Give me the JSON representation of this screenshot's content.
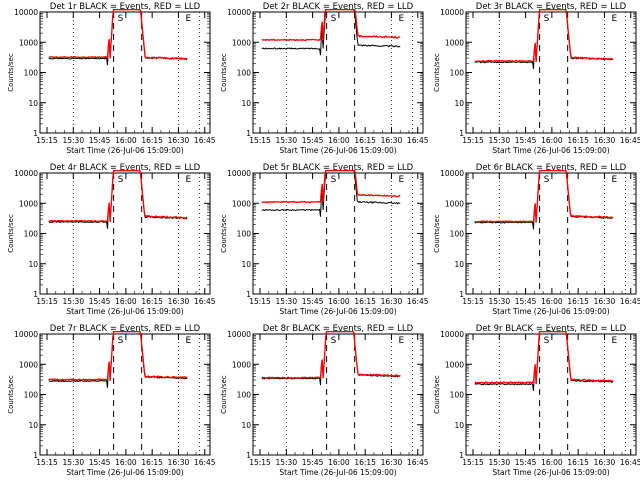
{
  "chart_data": [
    {
      "type": "line",
      "title": "Det 1r BLACK = Events, RED = LLD",
      "xlabel": "Start Time (26-Jul-06 15:09:00)",
      "ylabel": "Counts/sec",
      "xticks": [
        "15:15",
        "15:30",
        "15:45",
        "16:00",
        "16:15",
        "16:30",
        "16:45"
      ],
      "yticks": [
        "1",
        "10",
        "100",
        "1000",
        "10000"
      ],
      "ylim": [
        1,
        10000
      ],
      "yscale": "log",
      "markers": [
        "S",
        "E"
      ],
      "dashed_lines_at": [
        "15:53",
        "16:09"
      ],
      "dotted_lines_at": [
        "15:11",
        "15:30",
        "16:30",
        "16:42"
      ],
      "series": [
        {
          "name": "Events",
          "color": "#000000",
          "base": 290,
          "shift": 310
        },
        {
          "name": "LLD",
          "color": "#ff0000",
          "base": 320,
          "shift": 320
        }
      ]
    },
    {
      "type": "line",
      "title": "Det 2r BLACK = Events, RED = LLD",
      "xlabel": "Start Time (26-Jul-06 15:09:00)",
      "ylabel": "Counts/sec",
      "xticks": [
        "15:15",
        "15:30",
        "15:45",
        "16:00",
        "16:15",
        "16:30",
        "16:45"
      ],
      "yticks": [
        "1",
        "10",
        "100",
        "1000",
        "10000"
      ],
      "ylim": [
        1,
        10000
      ],
      "yscale": "log",
      "markers": [
        "S",
        "E"
      ],
      "dashed_lines_at": [
        "15:53",
        "16:09"
      ],
      "dotted_lines_at": [
        "15:11",
        "15:30",
        "16:30",
        "16:42"
      ],
      "series": [
        {
          "name": "Events",
          "color": "#000000",
          "base": 620,
          "shift": 800
        },
        {
          "name": "LLD",
          "color": "#ff0000",
          "base": 1200,
          "shift": 1600
        }
      ]
    },
    {
      "type": "line",
      "title": "Det 3r BLACK = Events, RED = LLD",
      "xlabel": "Start Time (26-Jul-06 15:09:00)",
      "ylabel": "Counts/sec",
      "xticks": [
        "15:15",
        "15:30",
        "15:45",
        "16:00",
        "16:15",
        "16:30",
        "16:45"
      ],
      "yticks": [
        "1",
        "10",
        "100",
        "1000",
        "10000"
      ],
      "ylim": [
        1,
        10000
      ],
      "yscale": "log",
      "markers": [
        "S",
        "E"
      ],
      "dashed_lines_at": [
        "15:53",
        "16:09"
      ],
      "dotted_lines_at": [
        "15:11",
        "15:30",
        "16:30",
        "16:42"
      ],
      "series": [
        {
          "name": "Events",
          "color": "#000000",
          "base": 220,
          "shift": 300
        },
        {
          "name": "LLD",
          "color": "#ff0000",
          "base": 240,
          "shift": 310
        }
      ]
    },
    {
      "type": "line",
      "title": "Det 4r BLACK = Events, RED = LLD",
      "xlabel": "Start Time (26-Jul-06 15:09:00)",
      "ylabel": "Counts/sec",
      "xticks": [
        "15:15",
        "15:30",
        "15:45",
        "16:00",
        "16:15",
        "16:30",
        "16:45"
      ],
      "yticks": [
        "1",
        "10",
        "100",
        "1000",
        "10000"
      ],
      "ylim": [
        1,
        10000
      ],
      "yscale": "log",
      "markers": [
        "S",
        "E"
      ],
      "dashed_lines_at": [
        "15:53",
        "16:09"
      ],
      "dotted_lines_at": [
        "15:11",
        "15:30",
        "16:30",
        "16:42"
      ],
      "series": [
        {
          "name": "Events",
          "color": "#000000",
          "base": 240,
          "shift": 350
        },
        {
          "name": "LLD",
          "color": "#ff0000",
          "base": 260,
          "shift": 370
        }
      ]
    },
    {
      "type": "line",
      "title": "Det 5r BLACK = Events, RED = LLD",
      "xlabel": "Start Time (26-Jul-06 15:09:00)",
      "ylabel": "Counts/sec",
      "xticks": [
        "15:15",
        "15:30",
        "15:45",
        "16:00",
        "16:15",
        "16:30",
        "16:45"
      ],
      "yticks": [
        "1",
        "10",
        "100",
        "1000",
        "10000"
      ],
      "ylim": [
        1,
        10000
      ],
      "yscale": "log",
      "markers": [
        "S",
        "E"
      ],
      "dashed_lines_at": [
        "15:53",
        "16:09"
      ],
      "dotted_lines_at": [
        "15:11",
        "15:30",
        "16:30",
        "16:42"
      ],
      "series": [
        {
          "name": "Events",
          "color": "#000000",
          "base": 600,
          "shift": 1100
        },
        {
          "name": "LLD",
          "color": "#ff0000",
          "base": 1100,
          "shift": 1900
        }
      ]
    },
    {
      "type": "line",
      "title": "Det 6r BLACK = Events, RED = LLD",
      "xlabel": "Start Time (26-Jul-06 15:09:00)",
      "ylabel": "Counts/sec",
      "xticks": [
        "15:15",
        "15:30",
        "15:45",
        "16:00",
        "16:15",
        "16:30",
        "16:45"
      ],
      "yticks": [
        "1",
        "10",
        "100",
        "1000",
        "10000"
      ],
      "ylim": [
        1,
        10000
      ],
      "yscale": "log",
      "markers": [
        "S",
        "E"
      ],
      "dashed_lines_at": [
        "15:53",
        "16:09"
      ],
      "dotted_lines_at": [
        "15:11",
        "15:30",
        "16:30",
        "16:42"
      ],
      "series": [
        {
          "name": "Events",
          "color": "#000000",
          "base": 230,
          "shift": 360
        },
        {
          "name": "LLD",
          "color": "#ff0000",
          "base": 250,
          "shift": 380
        }
      ]
    },
    {
      "type": "line",
      "title": "Det 7r BLACK = Events, RED = LLD",
      "xlabel": "Start Time (26-Jul-06 15:09:00)",
      "ylabel": "Counts/sec",
      "xticks": [
        "15:15",
        "15:30",
        "15:45",
        "16:00",
        "16:15",
        "16:30",
        "16:45"
      ],
      "yticks": [
        "1",
        "10",
        "100",
        "1000",
        "10000"
      ],
      "ylim": [
        1,
        10000
      ],
      "yscale": "log",
      "markers": [
        "S",
        "E"
      ],
      "dashed_lines_at": [
        "15:53",
        "16:09"
      ],
      "dotted_lines_at": [
        "15:11",
        "15:30",
        "16:30",
        "16:42"
      ],
      "series": [
        {
          "name": "Events",
          "color": "#000000",
          "base": 280,
          "shift": 380
        },
        {
          "name": "LLD",
          "color": "#ff0000",
          "base": 310,
          "shift": 400
        }
      ]
    },
    {
      "type": "line",
      "title": "Det 8r BLACK = Events, RED = LLD",
      "xlabel": "Start Time (26-Jul-06 15:09:00)",
      "ylabel": "Counts/sec",
      "xticks": [
        "15:15",
        "15:30",
        "15:45",
        "16:00",
        "16:15",
        "16:30",
        "16:45"
      ],
      "yticks": [
        "1",
        "10",
        "100",
        "1000",
        "10000"
      ],
      "ylim": [
        1,
        10000
      ],
      "yscale": "log",
      "markers": [
        "S",
        "E"
      ],
      "dashed_lines_at": [
        "15:53",
        "16:09"
      ],
      "dotted_lines_at": [
        "15:11",
        "15:30",
        "16:30",
        "16:42"
      ],
      "series": [
        {
          "name": "Events",
          "color": "#000000",
          "base": 340,
          "shift": 440
        },
        {
          "name": "LLD",
          "color": "#ff0000",
          "base": 360,
          "shift": 460
        }
      ]
    },
    {
      "type": "line",
      "title": "Det 9r BLACK = Events, RED = LLD",
      "xlabel": "Start Time (26-Jul-06 15:09:00)",
      "ylabel": "Counts/sec",
      "xticks": [
        "15:15",
        "15:30",
        "15:45",
        "16:00",
        "16:15",
        "16:30",
        "16:45"
      ],
      "yticks": [
        "1",
        "10",
        "100",
        "1000",
        "10000"
      ],
      "ylim": [
        1,
        10000
      ],
      "yscale": "log",
      "markers": [
        "S",
        "E"
      ],
      "dashed_lines_at": [
        "15:53",
        "16:09"
      ],
      "dotted_lines_at": [
        "15:11",
        "15:30",
        "16:30",
        "16:42"
      ],
      "series": [
        {
          "name": "Events",
          "color": "#000000",
          "base": 220,
          "shift": 290
        },
        {
          "name": "LLD",
          "color": "#ff0000",
          "base": 250,
          "shift": 310
        }
      ]
    }
  ]
}
